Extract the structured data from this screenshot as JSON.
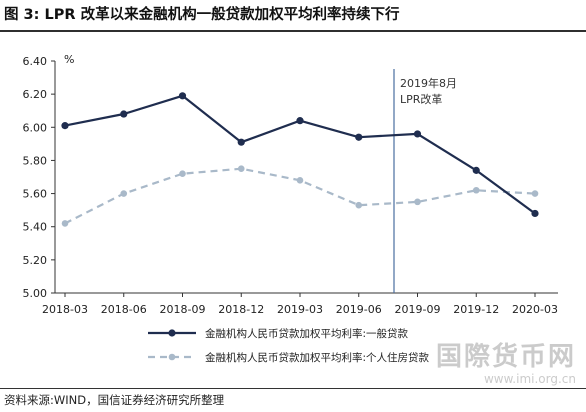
{
  "header": {
    "title": "图 3:  LPR 改革以来金融机构一般贷款加权平均利率持续下行"
  },
  "footer": {
    "source": "资料来源:WIND，国信证券经济研究所整理"
  },
  "watermark": {
    "text": "国際货币网",
    "url": "www.imi.org.cn"
  },
  "colors": {
    "series_general": "#1f2d4f",
    "series_mortgage": "#a9b9c9",
    "annotation_line": "#4a6fa0"
  },
  "chart_data": {
    "type": "line",
    "title": "",
    "xlabel": "",
    "ylabel": "%",
    "categories": [
      "2018-03",
      "2018-06",
      "2018-09",
      "2018-12",
      "2019-03",
      "2019-06",
      "2019-09",
      "2019-12",
      "2020-03"
    ],
    "ylim": [
      5.0,
      6.4
    ],
    "yticks": [
      "5.00",
      "5.20",
      "5.40",
      "5.60",
      "5.80",
      "6.00",
      "6.20",
      "6.40"
    ],
    "grid": false,
    "legend_position": "bottom",
    "series": [
      {
        "name": "金融机构人民币贷款加权平均利率:一般贷款",
        "style": "solid-marker",
        "values": [
          6.01,
          6.08,
          6.19,
          5.91,
          6.04,
          5.94,
          5.96,
          5.74,
          5.48
        ]
      },
      {
        "name": "金融机构人民币贷款加权平均利率:个人住房贷款",
        "style": "dashed-marker",
        "values": [
          5.42,
          5.6,
          5.72,
          5.75,
          5.68,
          5.53,
          5.55,
          5.62,
          5.6
        ]
      }
    ],
    "annotations": [
      {
        "x": 5.6,
        "lines": [
          "2019年8月",
          "LPR改革"
        ]
      }
    ]
  }
}
